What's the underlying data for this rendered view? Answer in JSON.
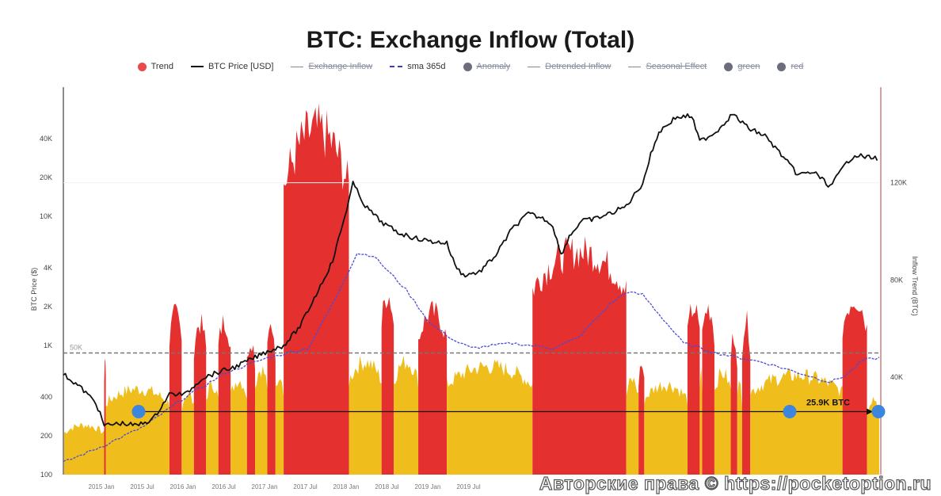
{
  "chart_data": {
    "type": "area",
    "title": "BTC: Exchange Inflow (Total)",
    "legend": [
      {
        "label": "Trend",
        "kind": "dot",
        "color": "#e94b4b",
        "active": true
      },
      {
        "label": "BTC Price [USD]",
        "kind": "line",
        "color": "#111111",
        "active": true
      },
      {
        "label": "Exchange Inflow",
        "kind": "line",
        "color": "#888888",
        "active": false
      },
      {
        "label": "sma 365d",
        "kind": "dash",
        "color": "#3a3ad0",
        "active": true
      },
      {
        "label": "Anomaly",
        "kind": "dot",
        "color": "#6b6d7d",
        "active": false
      },
      {
        "label": "Detrended Inflow",
        "kind": "line",
        "color": "#888888",
        "active": false
      },
      {
        "label": "Seasonal Effect",
        "kind": "line",
        "color": "#888888",
        "active": false
      },
      {
        "label": "green",
        "kind": "dot",
        "color": "#6b6d7d",
        "active": false
      },
      {
        "label": "red",
        "kind": "dot",
        "color": "#6b6d7d",
        "active": false
      }
    ],
    "left_axis": {
      "label": "BTC Price ($)",
      "scale": "log",
      "ticks": [
        "100",
        "200",
        "400",
        "1K",
        "2K",
        "4K",
        "10K",
        "20K",
        "40K"
      ],
      "range": [
        100,
        70000
      ]
    },
    "right_axis": {
      "label": "Inflow Trend (BTC)",
      "ticks": [
        "40K",
        "80K",
        "120K"
      ],
      "range": [
        0,
        160000
      ]
    },
    "x_ticks": [
      "2015 Jan",
      "2015 Jul",
      "2016 Jan",
      "2016 Jul",
      "2017 Jan",
      "2017 Jul",
      "2018 Jan",
      "2018 Jul",
      "2019 Jan",
      "2019 Jul"
    ],
    "reference_line": {
      "label": "50K",
      "value": 50000,
      "style": "dashed"
    },
    "annotation": {
      "label": "25.9K BTC",
      "value": 25900
    },
    "colors": {
      "up": "#e53030",
      "down": "#f0be1c",
      "price": "#111111",
      "sma": "#4a4ad8",
      "marker": "#3d86dd"
    },
    "inflow_trend_segments_k": [
      {
        "from": 0.0,
        "to": 0.05,
        "peak": 22,
        "color": "down"
      },
      {
        "from": 0.05,
        "to": 0.052,
        "peak": 52,
        "color": "up"
      },
      {
        "from": 0.052,
        "to": 0.13,
        "peak": 38,
        "color": "down"
      },
      {
        "from": 0.13,
        "to": 0.145,
        "peak": 71,
        "color": "up"
      },
      {
        "from": 0.145,
        "to": 0.16,
        "peak": 36,
        "color": "down"
      },
      {
        "from": 0.16,
        "to": 0.175,
        "peak": 67,
        "color": "up"
      },
      {
        "from": 0.175,
        "to": 0.19,
        "peak": 40,
        "color": "down"
      },
      {
        "from": 0.19,
        "to": 0.205,
        "peak": 68,
        "color": "up"
      },
      {
        "from": 0.205,
        "to": 0.225,
        "peak": 42,
        "color": "down"
      },
      {
        "from": 0.225,
        "to": 0.235,
        "peak": 60,
        "color": "up"
      },
      {
        "from": 0.235,
        "to": 0.25,
        "peak": 47,
        "color": "down"
      },
      {
        "from": 0.25,
        "to": 0.26,
        "peak": 66,
        "color": "up"
      },
      {
        "from": 0.26,
        "to": 0.27,
        "peak": 45,
        "color": "down"
      },
      {
        "from": 0.27,
        "to": 0.35,
        "peak": 153,
        "color": "up"
      },
      {
        "from": 0.35,
        "to": 0.39,
        "peak": 50,
        "color": "down"
      },
      {
        "from": 0.39,
        "to": 0.405,
        "peak": 80,
        "color": "up"
      },
      {
        "from": 0.405,
        "to": 0.435,
        "peak": 50,
        "color": "down"
      },
      {
        "from": 0.435,
        "to": 0.47,
        "peak": 72,
        "color": "up"
      },
      {
        "from": 0.47,
        "to": 0.575,
        "peak": 48,
        "color": "down"
      },
      {
        "from": 0.575,
        "to": 0.69,
        "peak": 99,
        "color": "up"
      },
      {
        "from": 0.69,
        "to": 0.705,
        "peak": 42,
        "color": "down"
      },
      {
        "from": 0.705,
        "to": 0.712,
        "peak": 49,
        "color": "up"
      },
      {
        "from": 0.712,
        "to": 0.765,
        "peak": 40,
        "color": "down"
      },
      {
        "from": 0.765,
        "to": 0.78,
        "peak": 74,
        "color": "up"
      },
      {
        "from": 0.78,
        "to": 0.783,
        "peak": 46,
        "color": "down"
      },
      {
        "from": 0.783,
        "to": 0.798,
        "peak": 74,
        "color": "up"
      },
      {
        "from": 0.798,
        "to": 0.818,
        "peak": 45,
        "color": "down"
      },
      {
        "from": 0.818,
        "to": 0.826,
        "peak": 62,
        "color": "up"
      },
      {
        "from": 0.826,
        "to": 0.832,
        "peak": 40,
        "color": "down"
      },
      {
        "from": 0.832,
        "to": 0.842,
        "peak": 68,
        "color": "up"
      },
      {
        "from": 0.842,
        "to": 0.955,
        "peak": 44,
        "color": "down"
      },
      {
        "from": 0.955,
        "to": 0.985,
        "peak": 78,
        "color": "up"
      },
      {
        "from": 0.985,
        "to": 1.0,
        "peak": 34,
        "color": "down"
      }
    ],
    "btc_price_points": [
      [
        0.0,
        600
      ],
      [
        0.02,
        480
      ],
      [
        0.04,
        360
      ],
      [
        0.05,
        240
      ],
      [
        0.07,
        250
      ],
      [
        0.09,
        240
      ],
      [
        0.11,
        270
      ],
      [
        0.13,
        420
      ],
      [
        0.15,
        420
      ],
      [
        0.17,
        560
      ],
      [
        0.19,
        620
      ],
      [
        0.21,
        680
      ],
      [
        0.23,
        780
      ],
      [
        0.25,
        900
      ],
      [
        0.27,
        1000
      ],
      [
        0.29,
        1400
      ],
      [
        0.31,
        2500
      ],
      [
        0.33,
        4500
      ],
      [
        0.345,
        10000
      ],
      [
        0.355,
        18000
      ],
      [
        0.37,
        12000
      ],
      [
        0.39,
        9000
      ],
      [
        0.41,
        7500
      ],
      [
        0.43,
        6800
      ],
      [
        0.45,
        6400
      ],
      [
        0.47,
        6200
      ],
      [
        0.48,
        4200
      ],
      [
        0.49,
        3500
      ],
      [
        0.51,
        3700
      ],
      [
        0.53,
        5000
      ],
      [
        0.55,
        8000
      ],
      [
        0.57,
        10500
      ],
      [
        0.59,
        9500
      ],
      [
        0.6,
        8500
      ],
      [
        0.61,
        5000
      ],
      [
        0.62,
        7000
      ],
      [
        0.635,
        9200
      ],
      [
        0.65,
        9500
      ],
      [
        0.67,
        10500
      ],
      [
        0.69,
        12000
      ],
      [
        0.71,
        18000
      ],
      [
        0.72,
        30000
      ],
      [
        0.73,
        45000
      ],
      [
        0.75,
        58000
      ],
      [
        0.77,
        60000
      ],
      [
        0.78,
        38000
      ],
      [
        0.8,
        45000
      ],
      [
        0.82,
        62000
      ],
      [
        0.84,
        48000
      ],
      [
        0.86,
        42000
      ],
      [
        0.88,
        30000
      ],
      [
        0.9,
        21000
      ],
      [
        0.92,
        22000
      ],
      [
        0.94,
        17000
      ],
      [
        0.96,
        26000
      ],
      [
        0.97,
        30000
      ],
      [
        0.98,
        29000
      ],
      [
        1.0,
        28000
      ]
    ]
  },
  "watermark": "Авторские права © https://pocketoption.ru"
}
